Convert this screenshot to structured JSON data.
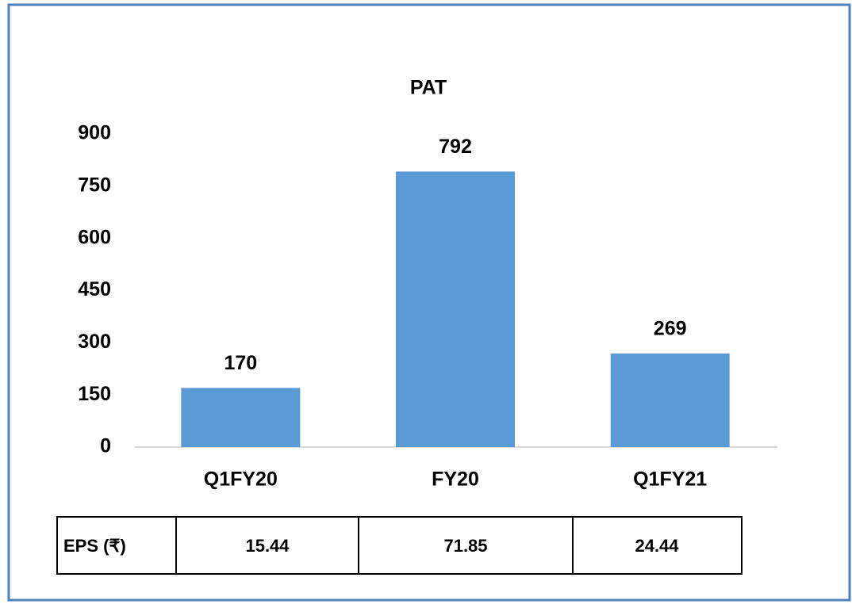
{
  "chart_data": {
    "type": "bar",
    "title": "PAT",
    "categories": [
      "Q1FY20",
      "FY20",
      "Q1FY21"
    ],
    "values": [
      170,
      792,
      269
    ],
    "color": "#5b9bd5",
    "ylim": [
      0,
      900
    ],
    "yticks": [
      0,
      150,
      300,
      450,
      600,
      750,
      900
    ],
    "grid": false
  },
  "table": {
    "rows": [
      [
        "EPS (₹)",
        "15.44",
        "71.85",
        "24.44"
      ]
    ]
  }
}
